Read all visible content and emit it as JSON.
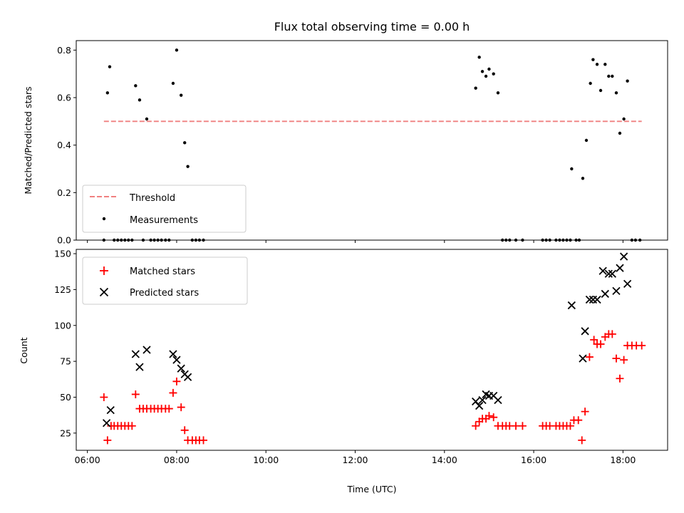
{
  "chart_data": [
    {
      "type": "scatter",
      "title": "Flux total observing time = 0.00 h",
      "xlabel": "",
      "ylabel": "Matched/Predicted stars",
      "xlim": [
        5.75,
        19.0
      ],
      "ylim": [
        0,
        0.84
      ],
      "yticks": [
        0.0,
        0.2,
        0.4,
        0.6,
        0.8
      ],
      "ytick_labels": [
        "0.0",
        "0.2",
        "0.4",
        "0.6",
        "0.8"
      ],
      "legend_position": "lower-left",
      "series": [
        {
          "name": "Threshold",
          "kind": "dashed-line",
          "color": "#f08080",
          "x": [
            6.37,
            18.42
          ],
          "y": [
            0.5,
            0.5
          ]
        },
        {
          "name": "Measurements",
          "kind": "dot",
          "color": "#000000",
          "points": [
            [
              6.37,
              0.0
            ],
            [
              6.45,
              0.62
            ],
            [
              6.5,
              0.73
            ],
            [
              6.6,
              0.0
            ],
            [
              6.68,
              0.0
            ],
            [
              6.76,
              0.0
            ],
            [
              6.84,
              0.0
            ],
            [
              6.92,
              0.0
            ],
            [
              7.0,
              0.0
            ],
            [
              7.08,
              0.65
            ],
            [
              7.17,
              0.59
            ],
            [
              7.25,
              0.0
            ],
            [
              7.33,
              0.51
            ],
            [
              7.42,
              0.0
            ],
            [
              7.5,
              0.0
            ],
            [
              7.58,
              0.0
            ],
            [
              7.66,
              0.0
            ],
            [
              7.75,
              0.0
            ],
            [
              7.83,
              0.0
            ],
            [
              7.92,
              0.66
            ],
            [
              8.0,
              0.8
            ],
            [
              8.1,
              0.61
            ],
            [
              8.18,
              0.41
            ],
            [
              8.25,
              0.31
            ],
            [
              8.35,
              0.0
            ],
            [
              8.43,
              0.0
            ],
            [
              8.51,
              0.0
            ],
            [
              8.6,
              0.0
            ],
            [
              14.7,
              0.64
            ],
            [
              14.78,
              0.77
            ],
            [
              14.85,
              0.71
            ],
            [
              14.93,
              0.69
            ],
            [
              15.0,
              0.72
            ],
            [
              15.1,
              0.7
            ],
            [
              15.2,
              0.62
            ],
            [
              15.3,
              0.0
            ],
            [
              15.38,
              0.0
            ],
            [
              15.46,
              0.0
            ],
            [
              15.6,
              0.0
            ],
            [
              15.75,
              0.0
            ],
            [
              16.2,
              0.0
            ],
            [
              16.28,
              0.0
            ],
            [
              16.36,
              0.0
            ],
            [
              16.5,
              0.0
            ],
            [
              16.58,
              0.0
            ],
            [
              16.66,
              0.0
            ],
            [
              16.74,
              0.0
            ],
            [
              16.82,
              0.0
            ],
            [
              16.85,
              0.3
            ],
            [
              16.95,
              0.0
            ],
            [
              17.02,
              0.0
            ],
            [
              17.1,
              0.26
            ],
            [
              17.18,
              0.42
            ],
            [
              17.27,
              0.66
            ],
            [
              17.33,
              0.76
            ],
            [
              17.42,
              0.74
            ],
            [
              17.5,
              0.63
            ],
            [
              17.6,
              0.74
            ],
            [
              17.68,
              0.69
            ],
            [
              17.76,
              0.69
            ],
            [
              17.85,
              0.62
            ],
            [
              17.93,
              0.45
            ],
            [
              18.02,
              0.51
            ],
            [
              18.1,
              0.67
            ],
            [
              18.2,
              0.0
            ],
            [
              18.28,
              0.0
            ],
            [
              18.38,
              0.0
            ]
          ]
        }
      ]
    },
    {
      "type": "scatter",
      "title": "",
      "xlabel": "Time (UTC)",
      "ylabel": "Count",
      "xlim": [
        5.75,
        19.0
      ],
      "ylim": [
        13,
        153
      ],
      "xticks": [
        6,
        8,
        10,
        12,
        14,
        16,
        18
      ],
      "xtick_labels": [
        "06:00",
        "08:00",
        "10:00",
        "12:00",
        "14:00",
        "16:00",
        "18:00"
      ],
      "yticks": [
        25,
        50,
        75,
        100,
        125,
        150
      ],
      "ytick_labels": [
        "25",
        "50",
        "75",
        "100",
        "125",
        "150"
      ],
      "legend_position": "upper-left",
      "series": [
        {
          "name": "Matched stars",
          "kind": "plus",
          "color": "#ff0000",
          "points": [
            [
              6.37,
              50
            ],
            [
              6.45,
              20
            ],
            [
              6.53,
              30
            ],
            [
              6.6,
              30
            ],
            [
              6.68,
              30
            ],
            [
              6.76,
              30
            ],
            [
              6.84,
              30
            ],
            [
              6.92,
              30
            ],
            [
              7.0,
              30
            ],
            [
              7.08,
              52
            ],
            [
              7.17,
              42
            ],
            [
              7.25,
              42
            ],
            [
              7.33,
              42
            ],
            [
              7.42,
              42
            ],
            [
              7.5,
              42
            ],
            [
              7.58,
              42
            ],
            [
              7.66,
              42
            ],
            [
              7.75,
              42
            ],
            [
              7.83,
              42
            ],
            [
              7.92,
              53
            ],
            [
              8.0,
              61
            ],
            [
              8.1,
              43
            ],
            [
              8.18,
              27
            ],
            [
              8.25,
              20
            ],
            [
              8.35,
              20
            ],
            [
              8.43,
              20
            ],
            [
              8.51,
              20
            ],
            [
              8.6,
              20
            ],
            [
              14.7,
              30
            ],
            [
              14.78,
              33
            ],
            [
              14.85,
              35
            ],
            [
              14.93,
              35
            ],
            [
              15.0,
              37
            ],
            [
              15.1,
              36
            ],
            [
              15.2,
              30
            ],
            [
              15.3,
              30
            ],
            [
              15.38,
              30
            ],
            [
              15.46,
              30
            ],
            [
              15.6,
              30
            ],
            [
              15.75,
              30
            ],
            [
              16.2,
              30
            ],
            [
              16.28,
              30
            ],
            [
              16.36,
              30
            ],
            [
              16.5,
              30
            ],
            [
              16.58,
              30
            ],
            [
              16.66,
              30
            ],
            [
              16.74,
              30
            ],
            [
              16.82,
              30
            ],
            [
              16.9,
              34
            ],
            [
              17.0,
              34
            ],
            [
              17.08,
              20
            ],
            [
              17.15,
              40
            ],
            [
              17.25,
              78
            ],
            [
              17.35,
              90
            ],
            [
              17.42,
              87
            ],
            [
              17.5,
              87
            ],
            [
              17.6,
              92
            ],
            [
              17.68,
              94
            ],
            [
              17.76,
              94
            ],
            [
              17.85,
              77
            ],
            [
              17.93,
              63
            ],
            [
              18.02,
              76
            ],
            [
              18.1,
              86
            ],
            [
              18.2,
              86
            ],
            [
              18.3,
              86
            ],
            [
              18.42,
              86
            ]
          ]
        },
        {
          "name": "Predicted stars",
          "kind": "x",
          "color": "#000000",
          "points": [
            [
              6.43,
              32
            ],
            [
              6.52,
              41
            ],
            [
              7.08,
              80
            ],
            [
              7.17,
              71
            ],
            [
              7.33,
              83
            ],
            [
              7.92,
              80
            ],
            [
              8.0,
              76
            ],
            [
              8.1,
              70
            ],
            [
              8.18,
              66
            ],
            [
              8.25,
              64
            ],
            [
              14.7,
              47
            ],
            [
              14.78,
              44
            ],
            [
              14.85,
              48
            ],
            [
              14.93,
              52
            ],
            [
              15.0,
              51
            ],
            [
              15.1,
              51
            ],
            [
              15.2,
              48
            ],
            [
              16.85,
              114
            ],
            [
              17.1,
              77
            ],
            [
              17.15,
              96
            ],
            [
              17.25,
              118
            ],
            [
              17.33,
              118
            ],
            [
              17.42,
              118
            ],
            [
              17.55,
              138
            ],
            [
              17.6,
              122
            ],
            [
              17.68,
              136
            ],
            [
              17.76,
              136
            ],
            [
              17.85,
              124
            ],
            [
              17.93,
              140
            ],
            [
              18.02,
              148
            ],
            [
              18.1,
              129
            ]
          ]
        }
      ]
    }
  ]
}
